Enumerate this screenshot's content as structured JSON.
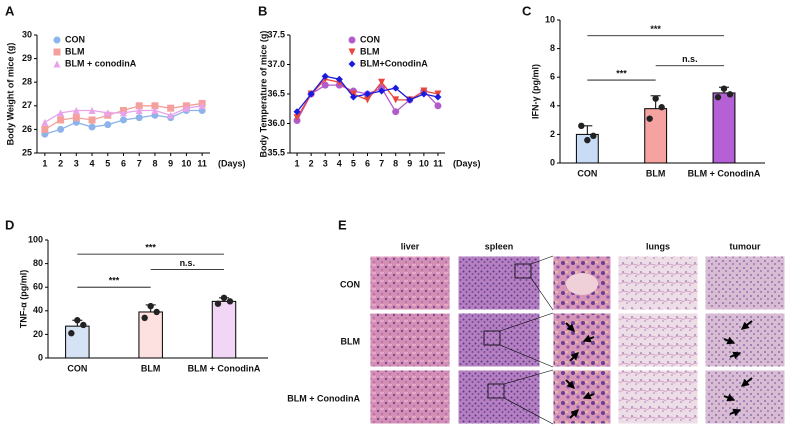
{
  "chart_data": [
    {
      "type": "line",
      "panel": "A",
      "ylabel": "Body Weight of mice (g)",
      "xlabel": "(Days)",
      "x": [
        1,
        2,
        3,
        4,
        5,
        6,
        7,
        8,
        9,
        10,
        11
      ],
      "xlim": [
        0.5,
        11.5
      ],
      "xticks": [
        1,
        2,
        3,
        4,
        5,
        6,
        7,
        8,
        9,
        10,
        11
      ],
      "ylim": [
        25,
        30
      ],
      "yticks": [
        25,
        26,
        27,
        28,
        29,
        30
      ],
      "legend": "upper left",
      "series": [
        {
          "name": "CON",
          "color": "#8db4ea",
          "marker": "circle",
          "values": [
            25.8,
            26.0,
            26.3,
            26.1,
            26.2,
            26.4,
            26.5,
            26.6,
            26.5,
            26.8,
            26.8
          ]
        },
        {
          "name": "BLM",
          "color": "#f4a09c",
          "marker": "square",
          "values": [
            26.0,
            26.4,
            26.5,
            26.4,
            26.6,
            26.8,
            27.0,
            27.0,
            26.9,
            27.0,
            27.1
          ]
        },
        {
          "name": "BLM + conodinA",
          "color": "#e8a2ea",
          "marker": "triangle",
          "values": [
            26.3,
            26.7,
            26.8,
            26.8,
            26.7,
            26.7,
            26.8,
            26.8,
            26.6,
            26.9,
            27.0
          ]
        }
      ]
    },
    {
      "type": "line",
      "panel": "B",
      "ylabel": "Body Temperature of mice (g)",
      "xlabel": "(Days)",
      "x": [
        1,
        2,
        3,
        4,
        5,
        6,
        7,
        8,
        9,
        10,
        11
      ],
      "xlim": [
        0.5,
        11.5
      ],
      "xticks": [
        1,
        2,
        3,
        4,
        5,
        6,
        7,
        8,
        9,
        10,
        11
      ],
      "ylim": [
        35.5,
        37.5
      ],
      "yticks": [
        35.5,
        {
          "value": 36,
          "label": "36.0"
        },
        36.5,
        {
          "value": 37,
          "label": "37.0"
        },
        37.5
      ],
      "legend": "upper center",
      "series": [
        {
          "name": "CON",
          "color": "#b25ccc",
          "marker": "circle",
          "values": [
            36.05,
            36.5,
            36.65,
            36.65,
            36.55,
            36.5,
            36.6,
            36.2,
            36.4,
            36.55,
            36.3
          ]
        },
        {
          "name": "BLM",
          "color": "#e8453c",
          "marker": "triangle-down",
          "values": [
            36.1,
            36.5,
            36.75,
            36.7,
            36.5,
            36.4,
            36.7,
            36.4,
            36.4,
            36.55,
            36.5
          ]
        },
        {
          "name": "BLM+ConodinA",
          "color": "#1a1adc",
          "marker": "diamond",
          "values": [
            36.2,
            36.5,
            36.8,
            36.75,
            36.45,
            36.5,
            36.55,
            36.6,
            36.4,
            36.5,
            36.45
          ]
        }
      ]
    },
    {
      "type": "bar",
      "panel": "C",
      "ylabel": "IFN-γ (pg/ml)",
      "categories": [
        "CON",
        "BLM",
        "BLM + ConodinA"
      ],
      "values": [
        2.0,
        3.8,
        4.9
      ],
      "errors": [
        0.6,
        0.9,
        0.4
      ],
      "points": [
        [
          2.6,
          1.6,
          1.9
        ],
        [
          3.1,
          4.5,
          3.9
        ],
        [
          4.6,
          5.2,
          4.8
        ]
      ],
      "colors": [
        "#c9dcf5",
        "#f5a3a0",
        "#b660d6"
      ],
      "ylim": [
        0,
        10
      ],
      "yticks": [
        0,
        2,
        4,
        6,
        8,
        10
      ],
      "annotations": [
        {
          "text": "***",
          "between": [
            "CON",
            "BLM"
          ],
          "y": 5.8
        },
        {
          "text": "n.s.",
          "between": [
            "BLM",
            "BLM + ConodinA"
          ],
          "y": 6.8
        },
        {
          "text": "***",
          "between": [
            "CON",
            "BLM + ConodinA"
          ],
          "y": 8.9
        }
      ]
    },
    {
      "type": "bar",
      "panel": "D",
      "ylabel": "TNF-α (pg/ml)",
      "categories": [
        "CON",
        "BLM",
        "BLM + ConodinA"
      ],
      "values": [
        27,
        39,
        48
      ],
      "errors": [
        5,
        6,
        3
      ],
      "points": [
        [
          21,
          32,
          28
        ],
        [
          34,
          44,
          39
        ],
        [
          46,
          51,
          48
        ]
      ],
      "colors": [
        "#d5e3f5",
        "#fde0e0",
        "#f2d6f5"
      ],
      "ylim": [
        0,
        100
      ],
      "yticks": [
        0,
        20,
        40,
        60,
        80,
        100
      ],
      "annotations": [
        {
          "text": "***",
          "between": [
            "CON",
            "BLM"
          ],
          "y": 60
        },
        {
          "text": "n.s.",
          "between": [
            "BLM",
            "BLM + ConodinA"
          ],
          "y": 75
        },
        {
          "text": "***",
          "between": [
            "CON",
            "BLM + ConodinA"
          ],
          "y": 88
        }
      ]
    }
  ],
  "panel_e": {
    "panel": "E",
    "columns": [
      "liver",
      "spleen",
      "lungs",
      "tumour"
    ],
    "rows": [
      "CON",
      "BLM",
      "BLM + ConodinA"
    ]
  }
}
